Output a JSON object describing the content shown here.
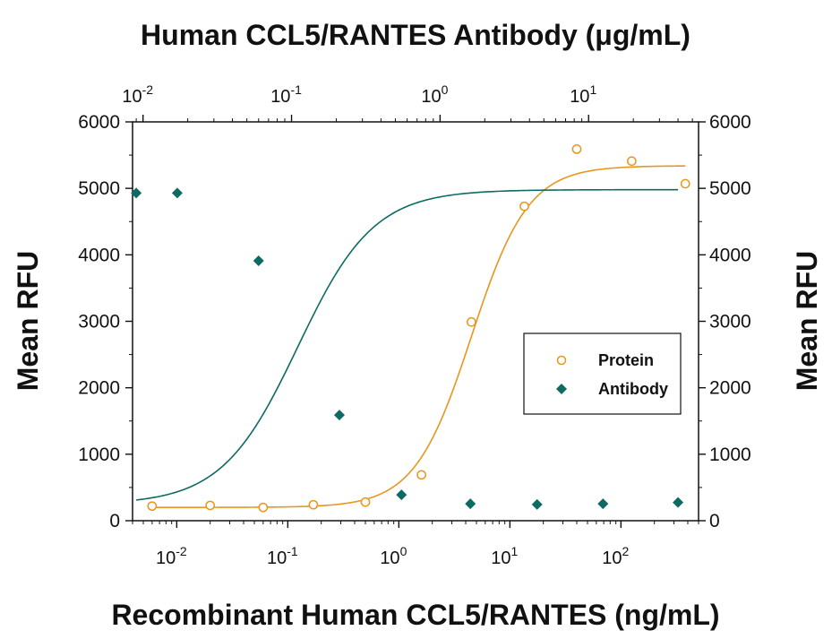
{
  "chart_data": {
    "type": "scatter",
    "title_top": "Human CCL5/RANTES Antibody (μg/mL)",
    "xlabel": "Recombinant Human CCL5/RANTES (ng/mL)",
    "ylabel_left": "Mean RFU",
    "ylabel_right": "Mean RFU",
    "x_scale": "log",
    "bottom_axis": {
      "range": [
        0.004,
        500
      ],
      "ticks": [
        {
          "base": "10",
          "exp": "-2",
          "value": 0.01
        },
        {
          "base": "10",
          "exp": "-1",
          "value": 0.1
        },
        {
          "base": "10",
          "exp": "0",
          "value": 1
        },
        {
          "base": "10",
          "exp": "1",
          "value": 10
        },
        {
          "base": "10",
          "exp": "2",
          "value": 100
        }
      ]
    },
    "top_axis": {
      "range": [
        0.0085,
        55
      ],
      "ticks": [
        {
          "base": "10",
          "exp": "-2",
          "value": 0.01
        },
        {
          "base": "10",
          "exp": "-1",
          "value": 0.1
        },
        {
          "base": "10",
          "exp": "0",
          "value": 1
        },
        {
          "base": "10",
          "exp": "1",
          "value": 10
        }
      ]
    },
    "y_axis": {
      "range": [
        0,
        6000
      ],
      "ticks": [
        "0",
        "1000",
        "2000",
        "3000",
        "4000",
        "5000",
        "6000"
      ]
    },
    "legend": {
      "position": "right-middle",
      "entries": [
        "Protein",
        "Antibody"
      ]
    },
    "colors": {
      "protein": "#e8961e",
      "antibody": "#0e6b64"
    },
    "series": [
      {
        "name": "Protein",
        "axis": "bottom",
        "marker": "open-circle",
        "points": [
          {
            "x": 0.006,
            "y": 220
          },
          {
            "x": 0.02,
            "y": 230
          },
          {
            "x": 0.06,
            "y": 200
          },
          {
            "x": 0.17,
            "y": 240
          },
          {
            "x": 0.5,
            "y": 280
          },
          {
            "x": 1.6,
            "y": 690
          },
          {
            "x": 4.5,
            "y": 2990
          },
          {
            "x": 13.5,
            "y": 4730
          },
          {
            "x": 40,
            "y": 5590
          },
          {
            "x": 125,
            "y": 5410
          },
          {
            "x": 380,
            "y": 5070
          }
        ],
        "fit": {
          "bottom": 200,
          "top": 5340,
          "ec50": 4.5,
          "hill": 1.7
        }
      },
      {
        "name": "Antibody",
        "axis": "top",
        "marker": "filled-diamond",
        "points": [
          {
            "x": 0.009,
            "y": 4930
          },
          {
            "x": 0.017,
            "y": 4930
          },
          {
            "x": 0.06,
            "y": 3910
          },
          {
            "x": 0.21,
            "y": 1590
          },
          {
            "x": 0.55,
            "y": 390
          },
          {
            "x": 1.6,
            "y": 255
          },
          {
            "x": 4.5,
            "y": 245
          },
          {
            "x": 12.5,
            "y": 255
          },
          {
            "x": 40,
            "y": 275
          }
        ],
        "fit": {
          "bottom": 245,
          "top": 4980,
          "ec50": 0.11,
          "hill": 1.7
        }
      }
    ]
  }
}
